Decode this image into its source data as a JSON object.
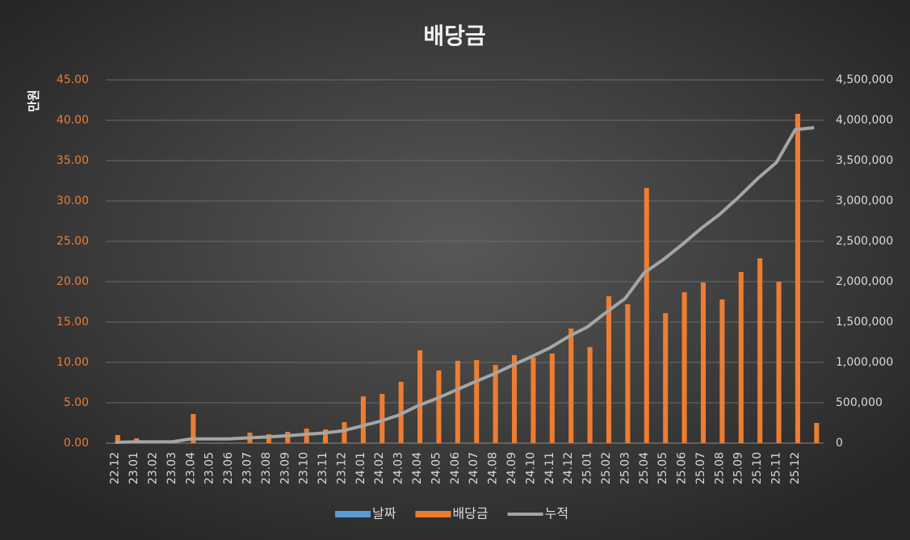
{
  "chart_data": {
    "type": "bar_line",
    "title": "배당금",
    "y_axis_label": "만원",
    "categories": [
      "22.12",
      "23.01",
      "23.02",
      "23.03",
      "23.04",
      "23.05",
      "23.06",
      "23.07",
      "23.08",
      "23.09",
      "23.10",
      "23.11",
      "23.12",
      "24.01",
      "24.02",
      "24.03",
      "24.04",
      "24.05",
      "24.06",
      "24.07",
      "24.08",
      "24.09",
      "24.10",
      "24.11",
      "24.12",
      "25.01",
      "25.02",
      "25.03",
      "25.04",
      "25.05",
      "25.06",
      "25.07",
      "25.08",
      "25.09",
      "25.10",
      "25.11",
      "25.12",
      null
    ],
    "series": [
      {
        "name": "날짜",
        "type": "bar",
        "color": "#5b9bd5",
        "values": [
          0,
          0,
          0,
          0,
          0,
          0,
          0,
          0,
          0,
          0,
          0,
          0,
          0,
          0,
          0,
          0,
          0,
          0,
          0,
          0,
          0,
          0,
          0,
          0,
          0,
          0,
          0,
          0,
          0,
          0,
          0,
          0,
          0,
          0,
          0,
          0,
          0,
          0
        ]
      },
      {
        "name": "배당금",
        "type": "bar",
        "color": "#ed7d31",
        "values": [
          1.0,
          0.6,
          0,
          0,
          3.6,
          0,
          0,
          1.3,
          1.1,
          1.4,
          1.8,
          1.7,
          2.6,
          5.8,
          6.1,
          7.6,
          11.5,
          9.0,
          10.2,
          10.3,
          9.7,
          10.9,
          10.6,
          11.1,
          14.2,
          11.9,
          18.2,
          17.2,
          31.6,
          16.1,
          18.7,
          19.9,
          17.8,
          21.2,
          22.9,
          20.0,
          40.8,
          2.5
        ]
      },
      {
        "name": "누적",
        "type": "line",
        "axis": "y2",
        "color": "#a5a5a5",
        "values": [
          10000,
          16000,
          16000,
          16000,
          52000,
          52000,
          52000,
          65000,
          76000,
          90000,
          108000,
          125000,
          151000,
          209000,
          270000,
          346000,
          461000,
          551000,
          653000,
          756000,
          853000,
          962000,
          1068000,
          1179000,
          1321000,
          1440000,
          1622000,
          1794000,
          2110000,
          2271000,
          2458000,
          2657000,
          2835000,
          3047000,
          3276000,
          3476000,
          3884000,
          3909000
        ]
      }
    ],
    "ylim": [
      0,
      45
    ],
    "yticks": [
      {
        "value": 0,
        "label": "0.00"
      },
      {
        "value": 5,
        "label": "5.00"
      },
      {
        "value": 10,
        "label": "10.00"
      },
      {
        "value": 15,
        "label": "15.00"
      },
      {
        "value": 20,
        "label": "20.00"
      },
      {
        "value": 25,
        "label": "25.00"
      },
      {
        "value": 30,
        "label": "30.00"
      },
      {
        "value": 35,
        "label": "35.00"
      },
      {
        "value": 40,
        "label": "40.00"
      },
      {
        "value": 45,
        "label": "45.00"
      }
    ],
    "y2lim": [
      0,
      4500000
    ],
    "y2ticks": [
      0,
      {
        "value": 500000,
        "label": "500,000"
      },
      {
        "value": 1000000,
        "label": "1,000,000"
      },
      {
        "value": 1500000,
        "label": "1,500,000"
      },
      {
        "value": 2000000,
        "label": "2,000,000"
      },
      {
        "value": 2500000,
        "label": "2,500,000"
      },
      {
        "value": 3000000,
        "label": "3,000,000"
      },
      {
        "value": 3500000,
        "label": "3,500,000"
      },
      {
        "value": 4000000,
        "label": "4,000,000"
      },
      {
        "value": 4500000,
        "label": "4,500,000"
      }
    ],
    "grid": true,
    "legend": "bottom"
  }
}
